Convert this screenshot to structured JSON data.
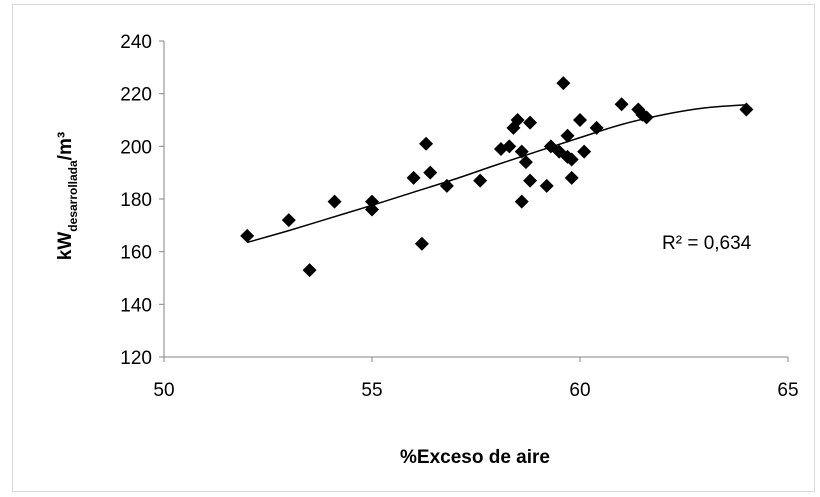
{
  "chart_data": {
    "type": "scatter",
    "title": "",
    "xlabel": "%Exceso de aire",
    "ylabel": {
      "main": "kW",
      "subscript": "desarrollada",
      "suffix": "/m³"
    },
    "xlim": [
      50,
      65
    ],
    "ylim": [
      120,
      240
    ],
    "xticks": [
      "50",
      "55",
      "60",
      "65"
    ],
    "yticks": [
      "120",
      "140",
      "160",
      "180",
      "200",
      "220",
      "240"
    ],
    "grid": false,
    "marker": "diamond",
    "marker_color": "#000000",
    "points": [
      {
        "x": 52.0,
        "y": 166
      },
      {
        "x": 53.0,
        "y": 172
      },
      {
        "x": 53.5,
        "y": 153
      },
      {
        "x": 54.1,
        "y": 179
      },
      {
        "x": 55.0,
        "y": 179
      },
      {
        "x": 55.0,
        "y": 176
      },
      {
        "x": 56.0,
        "y": 188
      },
      {
        "x": 56.2,
        "y": 163
      },
      {
        "x": 56.3,
        "y": 201
      },
      {
        "x": 56.4,
        "y": 190
      },
      {
        "x": 56.8,
        "y": 185
      },
      {
        "x": 57.6,
        "y": 187
      },
      {
        "x": 58.1,
        "y": 199
      },
      {
        "x": 58.3,
        "y": 200
      },
      {
        "x": 58.4,
        "y": 207
      },
      {
        "x": 58.5,
        "y": 210
      },
      {
        "x": 58.6,
        "y": 198
      },
      {
        "x": 58.6,
        "y": 179
      },
      {
        "x": 58.7,
        "y": 194
      },
      {
        "x": 58.8,
        "y": 209
      },
      {
        "x": 58.8,
        "y": 187
      },
      {
        "x": 59.2,
        "y": 185
      },
      {
        "x": 59.3,
        "y": 200
      },
      {
        "x": 59.5,
        "y": 198
      },
      {
        "x": 59.6,
        "y": 224
      },
      {
        "x": 59.7,
        "y": 204
      },
      {
        "x": 59.7,
        "y": 196
      },
      {
        "x": 59.8,
        "y": 188
      },
      {
        "x": 59.8,
        "y": 195
      },
      {
        "x": 60.0,
        "y": 210
      },
      {
        "x": 60.1,
        "y": 198
      },
      {
        "x": 60.4,
        "y": 207
      },
      {
        "x": 61.0,
        "y": 216
      },
      {
        "x": 61.4,
        "y": 214
      },
      {
        "x": 61.5,
        "y": 212
      },
      {
        "x": 61.6,
        "y": 211
      },
      {
        "x": 64.0,
        "y": 214
      }
    ],
    "trendline": {
      "type": "polynomial-2",
      "x_range": [
        52,
        64
      ],
      "points": [
        {
          "x": 52,
          "y": 163.5
        },
        {
          "x": 53,
          "y": 168
        },
        {
          "x": 54,
          "y": 172.8
        },
        {
          "x": 55,
          "y": 177.6
        },
        {
          "x": 56,
          "y": 182.6
        },
        {
          "x": 57,
          "y": 187.6
        },
        {
          "x": 58,
          "y": 193
        },
        {
          "x": 59,
          "y": 198.2
        },
        {
          "x": 60,
          "y": 203.3
        },
        {
          "x": 61,
          "y": 208.3
        },
        {
          "x": 62,
          "y": 212
        },
        {
          "x": 63,
          "y": 214.6
        },
        {
          "x": 64,
          "y": 215.8
        }
      ]
    },
    "annotation": "R² = 0,634"
  }
}
